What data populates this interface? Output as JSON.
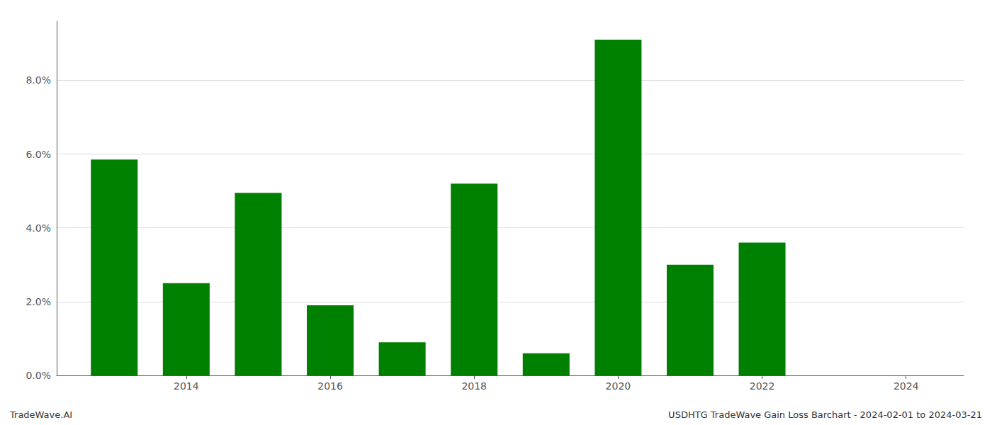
{
  "chart_data": {
    "type": "bar",
    "x": [
      2013,
      2014,
      2015,
      2016,
      2017,
      2018,
      2019,
      2020,
      2021,
      2022
    ],
    "values": [
      0.0585,
      0.025,
      0.0495,
      0.019,
      0.009,
      0.052,
      0.006,
      0.091,
      0.03,
      0.036
    ],
    "color": "#008000",
    "xlim": [
      2012.2,
      2024.8
    ],
    "xticks": [
      2014,
      2016,
      2018,
      2020,
      2022,
      2024
    ],
    "ylim": [
      0,
      0.096
    ],
    "yticks": [
      {
        "value": 0.0,
        "label": "0.0%"
      },
      {
        "value": 0.02,
        "label": "2.0%"
      },
      {
        "value": 0.04,
        "label": "4.0%"
      },
      {
        "value": 0.06,
        "label": "6.0%"
      },
      {
        "value": 0.08,
        "label": "8.0%"
      }
    ],
    "grid": true,
    "annotations": [
      "TradeWave.AI",
      "USDHTG TradeWave Gain Loss Barchart - 2024-02-01 to 2024-03-21"
    ]
  }
}
